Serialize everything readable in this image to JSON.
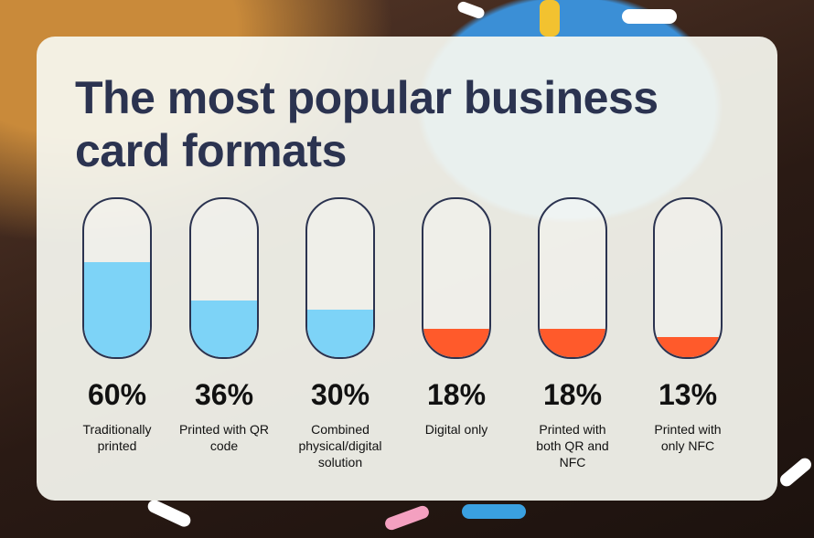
{
  "chart_data": {
    "type": "bar",
    "title": "The most popular business card formats",
    "categories": [
      "Traditionally printed",
      "Printed with QR code",
      "Combined physical/digital solution",
      "Digital only",
      "Printed with both QR and NFC",
      "Printed with only NFC"
    ],
    "values": [
      60,
      36,
      30,
      18,
      18,
      13
    ],
    "value_labels": [
      "60%",
      "36%",
      "30%",
      "18%",
      "18%",
      "13%"
    ],
    "colors": [
      "#7dd3f7",
      "#7dd3f7",
      "#7dd3f7",
      "#ff5a2b",
      "#ff5a2b",
      "#ff5a2b"
    ],
    "ylim": [
      0,
      100
    ]
  }
}
